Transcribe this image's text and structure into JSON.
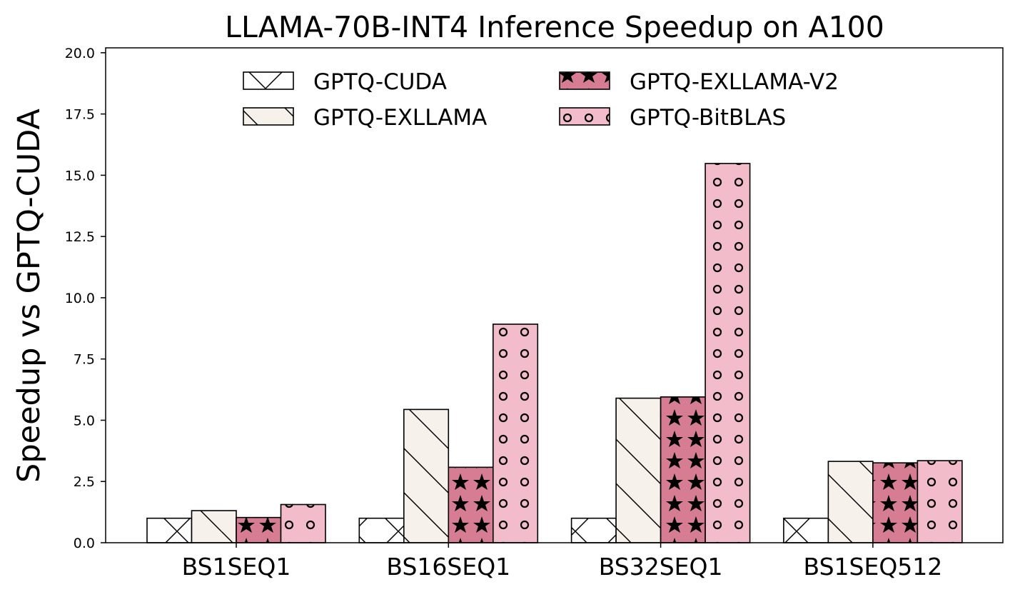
{
  "chart_data": {
    "type": "bar",
    "title": "LLAMA-70B-INT4 Inference Speedup on A100",
    "xlabel": "",
    "ylabel": "Speedup vs GPTQ-CUDA",
    "ylim": [
      0,
      20.2
    ],
    "yticks": [
      0.0,
      2.5,
      5.0,
      7.5,
      10.0,
      12.5,
      15.0,
      17.5,
      20.0
    ],
    "ytick_labels": [
      "0.0",
      "2.5",
      "5.0",
      "7.5",
      "10.0",
      "12.5",
      "15.0",
      "17.5",
      "20.0"
    ],
    "grid": false,
    "legend_placement": "top-center, 2 columns",
    "categories": [
      "BS1SEQ1",
      "BS16SEQ1",
      "BS32SEQ1",
      "BS1SEQ512"
    ],
    "series": [
      {
        "name": "GPTQ-CUDA",
        "values": [
          1.0,
          1.0,
          1.0,
          1.0
        ],
        "color": "#ffffff",
        "hatch": "cross-diagonal"
      },
      {
        "name": "GPTQ-EXLLAMA",
        "values": [
          1.31,
          5.44,
          5.9,
          3.32
        ],
        "color": "#f6f1ea",
        "hatch": "back-diagonal"
      },
      {
        "name": "GPTQ-EXLLAMA-V2",
        "values": [
          1.03,
          3.08,
          5.95,
          3.26
        ],
        "color": "#d67c93",
        "hatch": "stars"
      },
      {
        "name": "GPTQ-BitBLAS",
        "values": [
          1.56,
          8.92,
          15.48,
          3.35
        ],
        "color": "#f2bcca",
        "hatch": "circles"
      }
    ]
  }
}
